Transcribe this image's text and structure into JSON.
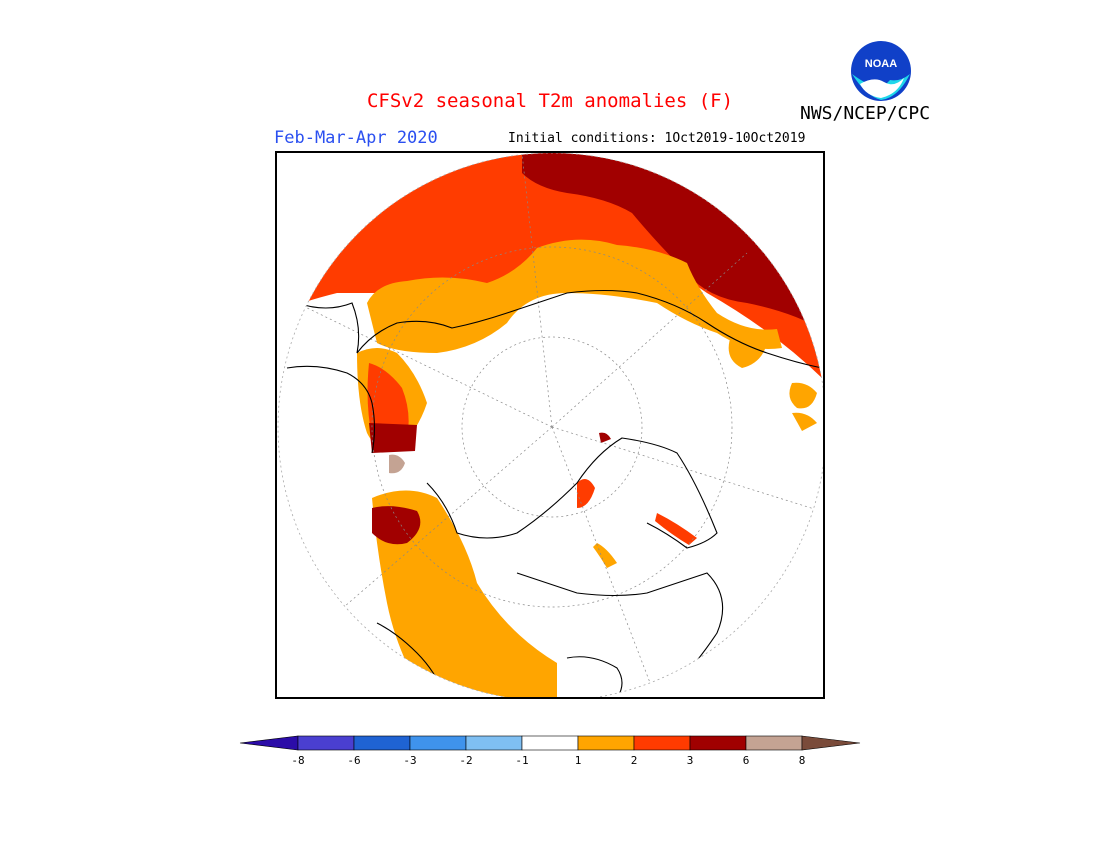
{
  "header": {
    "title": "CFSv2 seasonal T2m anomalies (F)",
    "title_color": "#ff0000",
    "agency": "NWS/NCEP/CPC",
    "period": "Feb-Mar-Apr 2020",
    "period_color": "#2a4ff0",
    "initial_conditions": "Initial conditions: 1Oct2019-10Oct2019",
    "logo_text": "NOAA"
  },
  "map": {
    "projection": "north polar stereographic",
    "dominant_anomaly_category": "below +1 F (white) over most land"
  },
  "colorbar": {
    "labels": [
      "-8",
      "-6",
      "-3",
      "-2",
      "-1",
      "1",
      "2",
      "3",
      "6",
      "8"
    ],
    "bins": [
      {
        "color": "#2b0ca8"
      },
      {
        "color": "#4a3fd0"
      },
      {
        "color": "#1f63d3"
      },
      {
        "color": "#3f93ec"
      },
      {
        "color": "#7fbff2"
      },
      {
        "color": "#ffffff"
      },
      {
        "color": "#ffa500"
      },
      {
        "color": "#ff3b00"
      },
      {
        "color": "#a00000"
      },
      {
        "color": "#c4a393"
      },
      {
        "color": "#7a4b3a"
      }
    ]
  },
  "colors": {
    "cat_1_2": "#ffa500",
    "cat_2_3": "#ff3c00",
    "cat_3_6": "#a10000",
    "cat_6_8": "#c4a393"
  }
}
